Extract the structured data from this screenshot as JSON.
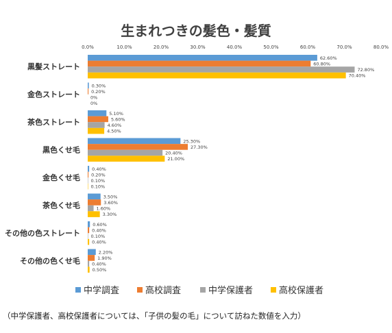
{
  "chart_data": {
    "type": "bar",
    "orientation": "horizontal",
    "title": "生まれつきの髪色・髪質",
    "categories": [
      "黒髪ストレート",
      "金色ストレート",
      "茶色ストレート",
      "黒色くせ毛",
      "金色くせ毛",
      "茶色くせ毛",
      "その他の色ストレート",
      "その他の色くせ毛"
    ],
    "series": [
      {
        "name": "中学調査",
        "color": "#5B9BD5",
        "values": [
          62.6,
          0.3,
          5.1,
          25.3,
          0.4,
          3.5,
          0.6,
          2.2
        ],
        "labels": [
          "62.60%",
          "0.30%",
          "5.10%",
          "25.30%",
          "0.40%",
          "3.50%",
          "0.60%",
          "2.20%"
        ]
      },
      {
        "name": "高校調査",
        "color": "#ED7D31",
        "values": [
          60.8,
          0.2,
          5.6,
          27.3,
          0.2,
          3.6,
          0.4,
          1.9
        ],
        "labels": [
          "60.80%",
          "0.20%",
          "5.60%",
          "27.30%",
          "0.20%",
          "3.60%",
          "0.40%",
          "1.90%"
        ]
      },
      {
        "name": "中学保護者",
        "color": "#A5A5A5",
        "values": [
          72.8,
          0,
          4.6,
          20.4,
          0.1,
          1.6,
          0.1,
          0.4
        ],
        "labels": [
          "72.80%",
          "0%",
          "4.60%",
          "20.40%",
          "0.10%",
          "1.60%",
          "0.10%",
          "0.40%"
        ]
      },
      {
        "name": "高校保護者",
        "color": "#FFC000",
        "values": [
          70.4,
          0,
          4.5,
          21.0,
          0.1,
          3.3,
          0.4,
          0.5
        ],
        "labels": [
          "70.40%",
          "0%",
          "4.50%",
          "21.00%",
          "0.10%",
          "3.30%",
          "0.40%",
          "0.50%"
        ]
      }
    ],
    "xlim": [
      0,
      80
    ],
    "xticks": [
      0,
      10,
      20,
      30,
      40,
      50,
      60,
      70,
      80
    ],
    "xtick_labels": [
      "0.0%",
      "10.0%",
      "20.0%",
      "30.0%",
      "40.0%",
      "50.0%",
      "60.0%",
      "70.0%",
      "80.0%"
    ],
    "axis_position": "top",
    "grid": false,
    "legend": "bottom"
  },
  "footnote": "（中学保護者、高校保護者については、「子供の髪の毛」について訪ねた数値を入力）"
}
